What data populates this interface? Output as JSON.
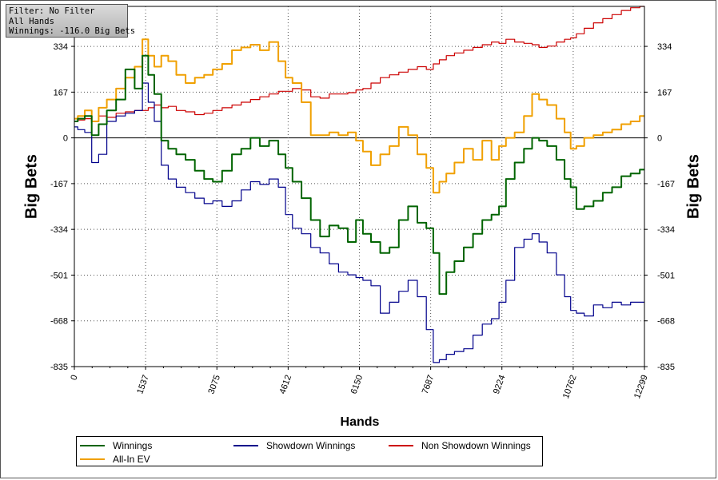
{
  "filter_box": {
    "line1": "Filter: No Filter",
    "line2": "All Hands",
    "line3": "Winnings: -116.0 Big Bets"
  },
  "chart_data": {
    "type": "line",
    "title": "",
    "xlabel": "Hands",
    "ylabel": "Big Bets",
    "ylabel_right": "Big Bets",
    "xlim": [
      0,
      12299
    ],
    "ylim": [
      -835,
      480
    ],
    "x_ticks": [
      0,
      1537,
      3075,
      4612,
      6150,
      7687,
      9224,
      10762,
      12299
    ],
    "y_ticks": [
      334,
      167,
      0,
      -167,
      -334,
      -501,
      -668,
      -835
    ],
    "grid": true,
    "legend_position": "bottom",
    "series": [
      {
        "name": "Winnings",
        "color": "#006400",
        "x": [
          0,
          150,
          300,
          450,
          600,
          800,
          1000,
          1200,
          1400,
          1537,
          1650,
          1800,
          1950,
          2100,
          2300,
          2500,
          2700,
          2900,
          3075,
          3300,
          3500,
          3700,
          3900,
          4100,
          4300,
          4500,
          4612,
          4800,
          5000,
          5200,
          5400,
          5600,
          5800,
          6000,
          6150,
          6300,
          6500,
          6700,
          6900,
          7100,
          7300,
          7500,
          7687,
          7800,
          7950,
          8100,
          8300,
          8500,
          8700,
          8900,
          9100,
          9224,
          9400,
          9600,
          9800,
          9950,
          10100,
          10300,
          10500,
          10650,
          10762,
          10900,
          11100,
          11300,
          11500,
          11700,
          11900,
          12100,
          12299
        ],
        "values": [
          60,
          70,
          80,
          10,
          50,
          100,
          140,
          250,
          180,
          300,
          230,
          160,
          -10,
          -40,
          -60,
          -80,
          -120,
          -150,
          -160,
          -120,
          -60,
          -40,
          0,
          -30,
          -10,
          -60,
          -110,
          -160,
          -220,
          -300,
          -360,
          -320,
          -330,
          -380,
          -300,
          -350,
          -380,
          -420,
          -400,
          -300,
          -250,
          -310,
          -330,
          -420,
          -570,
          -490,
          -450,
          -400,
          -350,
          -300,
          -280,
          -250,
          -150,
          -90,
          -40,
          0,
          -10,
          -30,
          -80,
          -150,
          -180,
          -260,
          -250,
          -230,
          -200,
          -180,
          -140,
          -130,
          -116
        ]
      },
      {
        "name": "Showdown Winnings",
        "color": "#00008b",
        "x": [
          0,
          150,
          300,
          450,
          600,
          800,
          1000,
          1200,
          1400,
          1537,
          1650,
          1800,
          1950,
          2100,
          2300,
          2500,
          2700,
          2900,
          3075,
          3300,
          3500,
          3700,
          3900,
          4100,
          4300,
          4500,
          4612,
          4800,
          5000,
          5200,
          5400,
          5600,
          5800,
          6000,
          6150,
          6300,
          6500,
          6700,
          6900,
          7100,
          7300,
          7500,
          7687,
          7800,
          7950,
          8100,
          8300,
          8500,
          8700,
          8900,
          9100,
          9224,
          9400,
          9600,
          9800,
          9950,
          10100,
          10300,
          10500,
          10650,
          10762,
          10900,
          11100,
          11300,
          11500,
          11700,
          11900,
          12100,
          12299
        ],
        "values": [
          40,
          30,
          20,
          -90,
          -60,
          60,
          80,
          90,
          100,
          200,
          130,
          60,
          -100,
          -150,
          -180,
          -200,
          -220,
          -240,
          -230,
          -250,
          -230,
          -190,
          -160,
          -170,
          -150,
          -180,
          -280,
          -330,
          -350,
          -400,
          -420,
          -460,
          -490,
          -500,
          -510,
          -520,
          -540,
          -640,
          -600,
          -560,
          -520,
          -580,
          -700,
          -820,
          -810,
          -790,
          -780,
          -770,
          -720,
          -680,
          -660,
          -600,
          -520,
          -400,
          -370,
          -350,
          -380,
          -420,
          -500,
          -580,
          -630,
          -640,
          -650,
          -610,
          -620,
          -600,
          -610,
          -600,
          -600
        ]
      },
      {
        "name": "Non Showdown Winnings",
        "color": "#cc0000",
        "x": [
          0,
          150,
          300,
          450,
          600,
          800,
          1000,
          1200,
          1400,
          1537,
          1650,
          1800,
          1950,
          2100,
          2300,
          2500,
          2700,
          2900,
          3075,
          3300,
          3500,
          3700,
          3900,
          4100,
          4300,
          4500,
          4612,
          4800,
          5000,
          5200,
          5400,
          5600,
          5800,
          6000,
          6150,
          6300,
          6500,
          6700,
          6900,
          7100,
          7300,
          7500,
          7687,
          7800,
          7950,
          8100,
          8300,
          8500,
          8700,
          8900,
          9100,
          9224,
          9400,
          9600,
          9800,
          9950,
          10100,
          10300,
          10500,
          10650,
          10762,
          10900,
          11100,
          11300,
          11500,
          11700,
          11900,
          12100,
          12299
        ],
        "values": [
          60,
          65,
          70,
          60,
          80,
          75,
          90,
          95,
          100,
          100,
          110,
          120,
          110,
          115,
          100,
          95,
          85,
          90,
          100,
          110,
          120,
          130,
          140,
          150,
          160,
          170,
          170,
          180,
          175,
          150,
          145,
          160,
          160,
          165,
          175,
          180,
          200,
          220,
          230,
          240,
          250,
          260,
          250,
          270,
          285,
          300,
          310,
          320,
          330,
          340,
          350,
          345,
          360,
          350,
          345,
          340,
          330,
          335,
          350,
          360,
          365,
          380,
          400,
          420,
          435,
          450,
          465,
          475,
          480
        ]
      },
      {
        "name": "All-In EV",
        "color": "#f0a000",
        "x": [
          0,
          150,
          300,
          450,
          600,
          800,
          1000,
          1200,
          1400,
          1537,
          1650,
          1800,
          1950,
          2100,
          2300,
          2500,
          2700,
          2900,
          3075,
          3300,
          3500,
          3700,
          3900,
          4100,
          4300,
          4500,
          4612,
          4800,
          5000,
          5200,
          5400,
          5600,
          5800,
          6000,
          6150,
          6300,
          6500,
          6700,
          6900,
          7100,
          7300,
          7500,
          7687,
          7800,
          7950,
          8100,
          8300,
          8500,
          8700,
          8900,
          9100,
          9224,
          9400,
          9600,
          9800,
          9950,
          10100,
          10300,
          10500,
          10650,
          10762,
          10900,
          11100,
          11300,
          11500,
          11700,
          11900,
          12100,
          12299
        ],
        "values": [
          70,
          80,
          100,
          60,
          110,
          140,
          180,
          220,
          260,
          360,
          300,
          260,
          300,
          280,
          230,
          200,
          220,
          230,
          250,
          270,
          320,
          330,
          340,
          320,
          350,
          280,
          220,
          200,
          130,
          10,
          10,
          20,
          10,
          20,
          -10,
          -50,
          -100,
          -60,
          -30,
          40,
          10,
          -60,
          -110,
          -200,
          -160,
          -130,
          -90,
          -40,
          -80,
          -10,
          -80,
          -30,
          0,
          20,
          80,
          160,
          140,
          120,
          70,
          20,
          -40,
          -30,
          0,
          10,
          20,
          30,
          50,
          60,
          80
        ]
      }
    ]
  }
}
